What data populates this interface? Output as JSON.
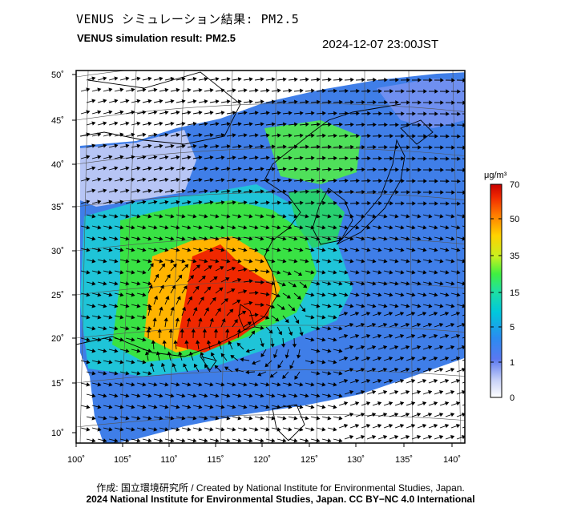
{
  "header": {
    "title_jp": "VENUS シミュレーション結果: PM2.5",
    "title_en": "VENUS simulation result: PM2.5",
    "timestamp": "2024-12-07 23:00JST"
  },
  "map": {
    "lat_labels": [
      "50˚",
      "45˚",
      "40˚",
      "35˚",
      "30˚",
      "25˚",
      "20˚",
      "15˚",
      "10˚"
    ],
    "lon_labels": [
      "100˚",
      "105˚",
      "110˚",
      "115˚",
      "120˚",
      "125˚",
      "130˚",
      "135˚",
      "140˚"
    ]
  },
  "colorbar": {
    "unit": "μg/m³",
    "ticks": [
      "70",
      "50",
      "35",
      "15",
      "5",
      "1",
      "0"
    ],
    "colors": [
      "#ffffff",
      "#c8d2f8",
      "#5a78f0",
      "#2a8cf0",
      "#00c8dc",
      "#20e0a0",
      "#40f040",
      "#c8f020",
      "#ffd200",
      "#ff7800",
      "#f02800",
      "#c80000"
    ]
  },
  "footer": {
    "credit_line": "作成: 国立環境研究所 / Created by National Institute for Environmental Studies, Japan.",
    "license_line": "2024 National Institute for Environmental Studies, Japan. CC BY−NC 4.0 International"
  }
}
